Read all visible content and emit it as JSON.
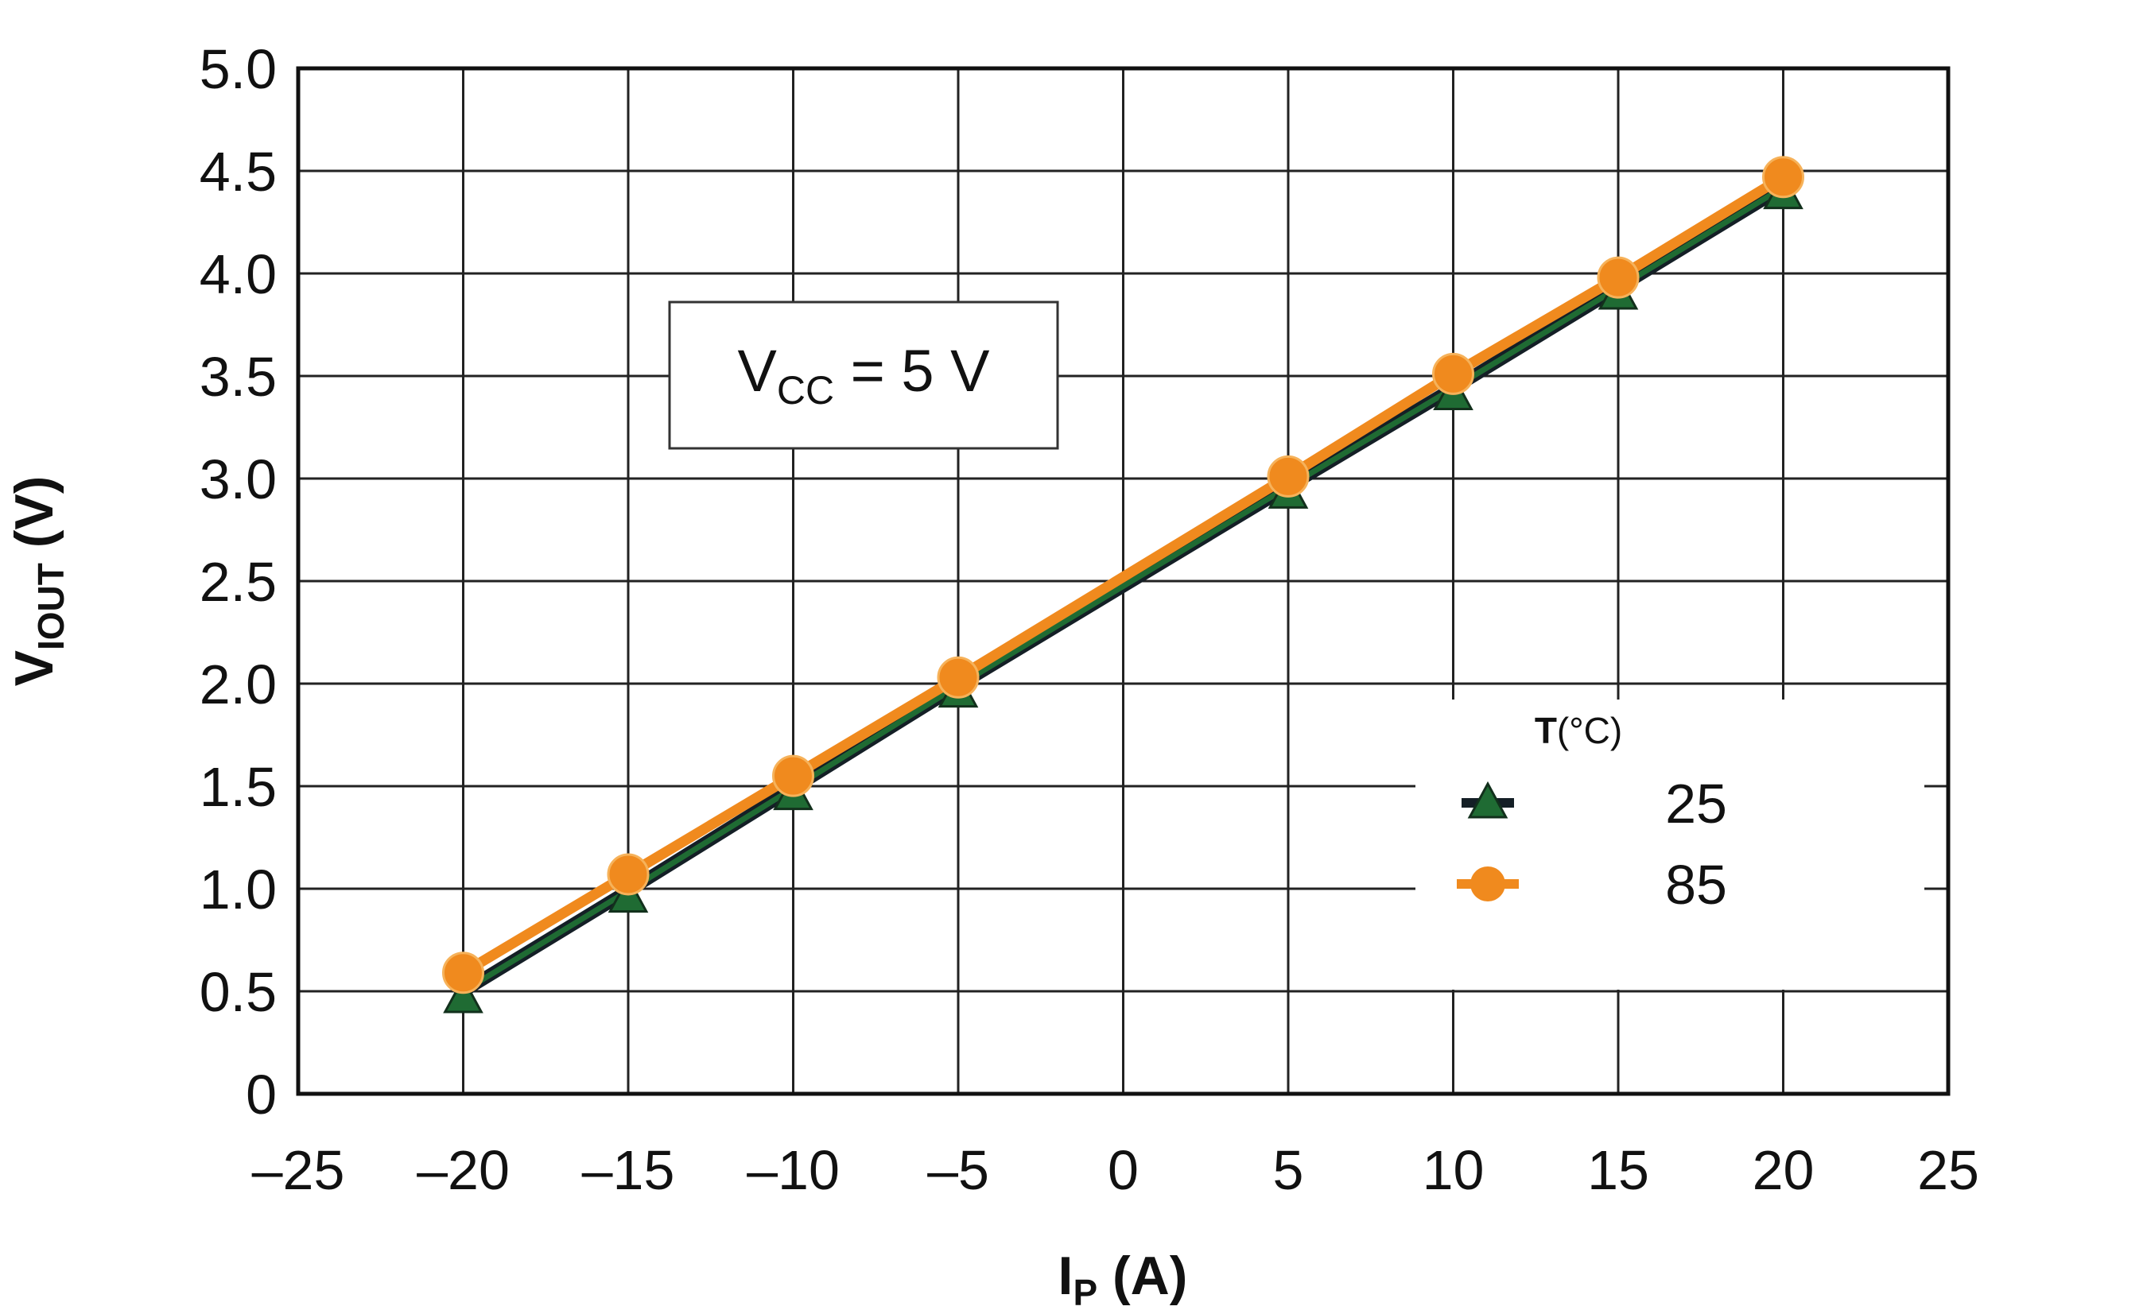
{
  "chart_data": {
    "type": "line",
    "xlabel": {
      "main": "I",
      "sub": "P",
      "unit": " (A)"
    },
    "ylabel": {
      "main": "V",
      "sub": "IOUT",
      "unit": " (V)"
    },
    "xlim": [
      -25,
      25
    ],
    "ylim": [
      0,
      5
    ],
    "x_ticks": [
      -25,
      -20,
      -15,
      -10,
      -5,
      0,
      5,
      10,
      15,
      20,
      25
    ],
    "x_tick_labels": [
      "–25",
      "–20",
      "–15",
      "–10",
      "–5",
      "0",
      "5",
      "10",
      "15",
      "20",
      "25"
    ],
    "y_ticks": [
      0,
      0.5,
      1.0,
      1.5,
      2.0,
      2.5,
      3.0,
      3.5,
      4.0,
      4.5,
      5.0
    ],
    "y_tick_labels": [
      "0",
      "0.5",
      "1.0",
      "1.5",
      "2.0",
      "2.5",
      "3.0",
      "3.5",
      "4.0",
      "4.5",
      "5.0"
    ],
    "grid": true,
    "x": [
      -20,
      -15,
      -10,
      -5,
      5,
      10,
      15,
      20
    ],
    "series": [
      {
        "name": "25",
        "marker": "triangle",
        "color": "#1f6b33",
        "values": [
          0.5,
          0.99,
          1.49,
          1.99,
          2.96,
          3.44,
          3.93,
          4.42
        ]
      },
      {
        "name": "85",
        "marker": "circle",
        "color": "#f08a1e",
        "values": [
          0.59,
          1.07,
          1.55,
          2.03,
          3.01,
          3.51,
          3.98,
          4.47
        ]
      }
    ],
    "annotation": {
      "main": "V",
      "sub": "CC",
      "rest": " = 5 V"
    },
    "legend": {
      "title": "T",
      "title_unit": "(°C)",
      "placement": "bottom-right"
    }
  }
}
